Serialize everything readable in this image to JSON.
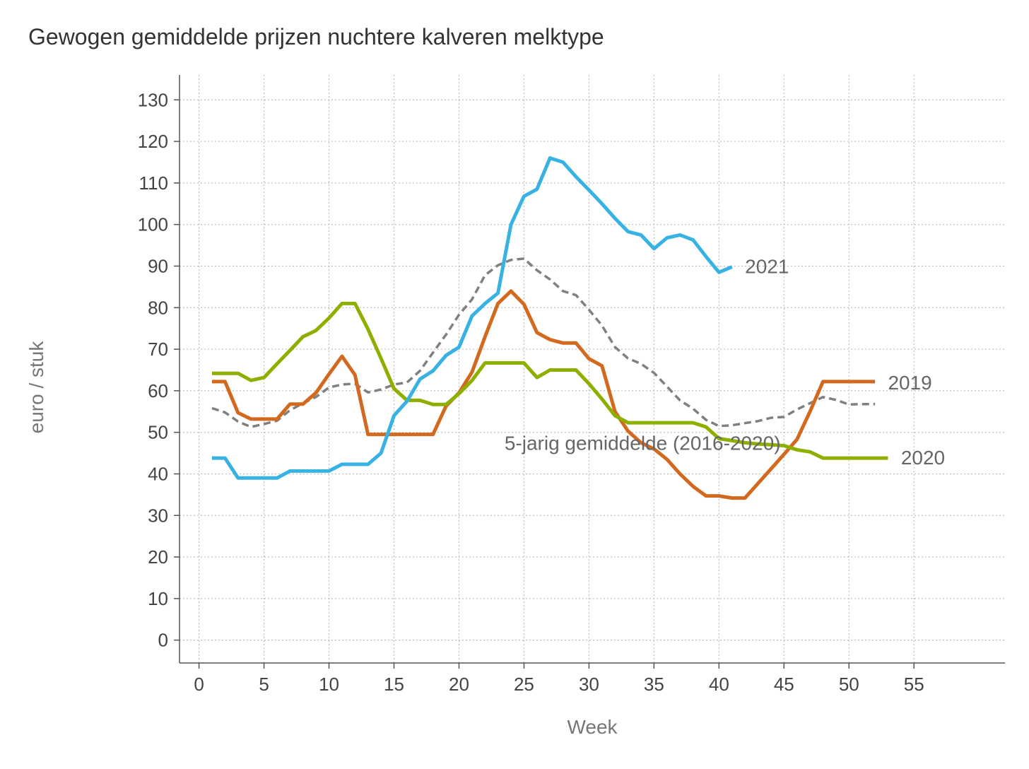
{
  "chart_data": {
    "type": "line",
    "title": "Gewogen gemiddelde prijzen nuchtere kalveren melktype",
    "xlabel": "Week",
    "ylabel": "euro / stuk",
    "xlim": [
      -1.5,
      62
    ],
    "ylim": [
      -5.5,
      136
    ],
    "x_ticks": [
      0,
      5,
      10,
      15,
      20,
      25,
      30,
      35,
      40,
      45,
      50,
      55
    ],
    "y_ticks": [
      0,
      10,
      20,
      30,
      40,
      50,
      60,
      70,
      80,
      90,
      100,
      110,
      120,
      130
    ],
    "grid": true,
    "legend": "none (inline labels)",
    "series": [
      {
        "name": "5-jarig gemiddelde (2016-2020)",
        "color": "#808080",
        "dashed": true,
        "x": [
          1,
          2,
          3,
          4,
          5,
          6,
          7,
          8,
          9,
          10,
          11,
          12,
          13,
          14,
          15,
          16,
          17,
          18,
          19,
          20,
          21,
          22,
          23,
          24,
          25,
          26,
          27,
          28,
          29,
          30,
          31,
          32,
          33,
          34,
          35,
          36,
          37,
          38,
          39,
          40,
          41,
          42,
          43,
          44,
          45,
          46,
          47,
          48,
          49,
          50,
          51,
          52
        ],
        "values": [
          55.8,
          54.8,
          52.6,
          51.3,
          52.0,
          52.8,
          55.3,
          57.0,
          58.5,
          60.8,
          61.5,
          61.7,
          59.6,
          60.3,
          61.5,
          62.0,
          64.8,
          69.2,
          73.5,
          78.3,
          82.0,
          87.8,
          90.2,
          91.5,
          91.8,
          89.0,
          86.8,
          84.0,
          83.0,
          79.5,
          75.7,
          70.5,
          67.8,
          66.5,
          64.3,
          61.0,
          57.7,
          55.7,
          53.0,
          51.5,
          51.7,
          52.2,
          52.7,
          53.5,
          53.7,
          55.5,
          57.0,
          58.5,
          57.8,
          56.7,
          56.8,
          56.8
        ]
      },
      {
        "name": "2019",
        "color": "#D2691E",
        "dashed": false,
        "x": [
          1,
          2,
          3,
          4,
          5,
          6,
          7,
          8,
          9,
          10,
          11,
          12,
          13,
          14,
          15,
          16,
          17,
          18,
          19,
          20,
          21,
          22,
          23,
          24,
          25,
          26,
          27,
          28,
          29,
          30,
          31,
          32,
          33,
          34,
          35,
          36,
          37,
          38,
          39,
          40,
          41,
          42,
          43,
          44,
          45,
          46,
          47,
          48,
          49,
          50,
          51,
          52
        ],
        "values": [
          62.2,
          62.2,
          54.7,
          53.2,
          53.2,
          53.2,
          56.8,
          56.8,
          59.5,
          64.0,
          68.3,
          63.8,
          49.5,
          49.5,
          49.5,
          49.5,
          49.5,
          49.5,
          56.3,
          59.5,
          64.5,
          73.0,
          81.0,
          84.0,
          80.8,
          74.0,
          72.3,
          71.5,
          71.5,
          67.7,
          66.0,
          55.0,
          50.3,
          47.5,
          46.0,
          43.5,
          40.0,
          37.0,
          34.7,
          34.7,
          34.2,
          34.2,
          37.7,
          41.2,
          44.7,
          48.3,
          55.0,
          62.2,
          62.2,
          62.2,
          62.2,
          62.2
        ]
      },
      {
        "name": "2020",
        "color": "#8DB000",
        "dashed": false,
        "x": [
          1,
          2,
          3,
          4,
          5,
          6,
          7,
          8,
          9,
          10,
          11,
          12,
          13,
          14,
          15,
          16,
          17,
          18,
          19,
          20,
          21,
          22,
          23,
          24,
          25,
          26,
          27,
          28,
          29,
          30,
          31,
          32,
          33,
          34,
          35,
          36,
          37,
          38,
          39,
          40,
          41,
          42,
          43,
          44,
          45,
          46,
          47,
          48,
          49,
          50,
          51,
          52,
          53
        ],
        "values": [
          64.2,
          64.2,
          64.2,
          62.5,
          63.2,
          66.5,
          69.7,
          73.0,
          74.5,
          77.5,
          81.0,
          81.0,
          74.8,
          67.8,
          60.5,
          57.7,
          57.7,
          56.7,
          56.7,
          59.3,
          62.5,
          66.7,
          66.7,
          66.7,
          66.7,
          63.2,
          65.0,
          65.0,
          65.0,
          61.7,
          58.0,
          54.0,
          52.3,
          52.3,
          52.3,
          52.3,
          52.3,
          52.3,
          51.3,
          48.5,
          48.0,
          47.5,
          47.2,
          47.0,
          46.8,
          45.8,
          45.3,
          43.8,
          43.8,
          43.8,
          43.8,
          43.8,
          43.8
        ]
      },
      {
        "name": "2021",
        "color": "#38B2E3",
        "dashed": false,
        "x": [
          1,
          2,
          3,
          4,
          5,
          6,
          7,
          8,
          9,
          10,
          11,
          12,
          13,
          14,
          15,
          16,
          17,
          18,
          19,
          20,
          21,
          22,
          23,
          24,
          25,
          26,
          27,
          28,
          29,
          30,
          31,
          32,
          33,
          34,
          35,
          36,
          37,
          38,
          39,
          40,
          41
        ],
        "values": [
          43.8,
          43.8,
          39.0,
          39.0,
          39.0,
          39.0,
          40.7,
          40.7,
          40.7,
          40.7,
          42.3,
          42.3,
          42.3,
          45.0,
          54.0,
          57.5,
          62.8,
          64.8,
          68.5,
          70.5,
          78.0,
          81.0,
          83.5,
          100.0,
          106.8,
          108.5,
          116.0,
          115.0,
          111.5,
          108.3,
          105.0,
          101.5,
          98.3,
          97.5,
          94.2,
          96.8,
          97.5,
          96.3,
          92.3,
          88.5,
          89.8
        ]
      }
    ],
    "annotations": [
      {
        "text": "2021",
        "x": 42,
        "y": 90
      },
      {
        "text": "2019",
        "x": 53,
        "y": 62
      },
      {
        "text": "2020",
        "x": 54,
        "y": 44
      },
      {
        "text": "5-jarig gemiddelde (2016-2020)",
        "x": 23.5,
        "y": 47.5
      }
    ]
  }
}
